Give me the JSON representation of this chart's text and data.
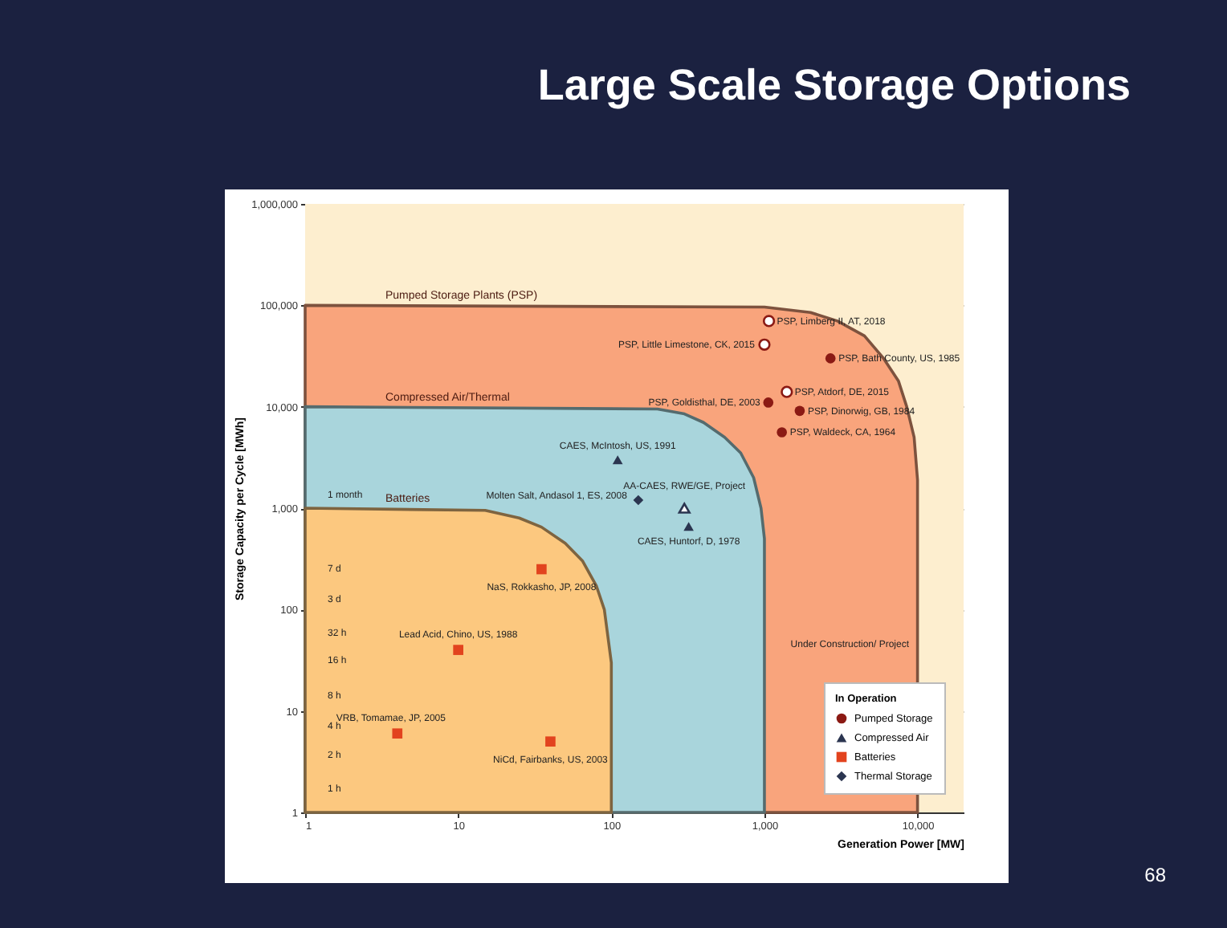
{
  "chart_data": {
    "type": "scatter",
    "title": "Large Scale Storage Options",
    "xlabel": "Generation Power [MW]",
    "ylabel": "Storage Capacity per Cycle [MWh]",
    "legend_title": "In Operation",
    "log": "xy",
    "grid": "y",
    "legend": "bottom right",
    "xlim": [
      1,
      20000
    ],
    "ylim": [
      1,
      1000000
    ],
    "bands": [
      {
        "axis": "y",
        "from": 1,
        "to": 1000000,
        "color": "#fdeecf"
      }
    ],
    "xticks": [
      1,
      10,
      100,
      {
        "value": 1000,
        "label": "1,000"
      },
      {
        "value": 10000,
        "label": "10,000"
      }
    ],
    "yticks": [
      1,
      10,
      100,
      {
        "value": 1000,
        "label": "1,000"
      },
      {
        "value": 10000,
        "label": "10,000"
      },
      {
        "value": 100000,
        "label": "100,000"
      },
      {
        "value": 1000000,
        "label": "1,000,000"
      }
    ],
    "series": [
      {
        "type": "area",
        "name": "Pumped Storage Plants (PSP)",
        "color": "#f9a47c",
        "x": [
          1,
          1000,
          2000,
          3000,
          4500,
          6000,
          7500,
          8500,
          9500,
          10000,
          10000
        ],
        "values": [
          100000,
          96000,
          85000,
          70000,
          50000,
          30000,
          18000,
          10000,
          5000,
          1900,
          1
        ]
      },
      {
        "type": "area",
        "name": "Compressed Air/Thermal",
        "color": "#a9d5dc",
        "x": [
          1,
          200,
          300,
          400,
          550,
          700,
          850,
          950,
          1000,
          1000
        ],
        "values": [
          10000,
          9500,
          8500,
          7000,
          5000,
          3500,
          2000,
          1000,
          500,
          1
        ]
      },
      {
        "type": "area",
        "name": "Batteries",
        "color": "#fcc87f",
        "x": [
          1,
          15,
          25,
          35,
          50,
          65,
          80,
          90,
          100,
          100
        ],
        "values": [
          1000,
          950,
          800,
          650,
          450,
          300,
          170,
          100,
          30,
          1
        ]
      },
      {
        "name": "Pumped Storage",
        "marker": "circle",
        "color": "#8b1a14",
        "x": [
          2700,
          1060,
          1700,
          1300
        ],
        "values": [
          30000,
          11000,
          9100,
          5600
        ]
      },
      {
        "marker": "circle",
        "color": "#ffffff",
        "x": [
          1070,
          1000,
          1400
        ],
        "values": [
          70000,
          41000,
          14000
        ]
      },
      {
        "name": "Compressed Air",
        "marker": "triangle",
        "color": "#2b3550",
        "x": [
          110,
          320
        ],
        "values": [
          3000,
          660
        ]
      },
      {
        "marker": "triangle",
        "color": "#ffffff",
        "x": [
          300
        ],
        "values": [
          1000
        ]
      },
      {
        "name": "Batteries",
        "marker": "square",
        "color": "#e2431e",
        "x": [
          35,
          10,
          4,
          40
        ],
        "values": [
          250,
          40,
          6,
          5
        ]
      },
      {
        "name": "Thermal Storage",
        "marker": "diamond",
        "color": "#2b3550",
        "x": [
          150
        ],
        "values": [
          1200
        ]
      }
    ],
    "annotations": [
      {
        "text": "PSP, Bath County, US, 1985",
        "x": 2700,
        "y": 30000
      },
      {
        "text": "PSP, Goldisthal, DE, 2003",
        "x": 1060,
        "y": 11000
      },
      {
        "text": "PSP, Dinorwig, GB, 1984",
        "x": 1700,
        "y": 9100
      },
      {
        "text": "PSP, Waldeck, CA, 1964",
        "x": 1300,
        "y": 5600
      },
      {
        "text": "PSP, Limberg II, AT, 2018",
        "x": 1070,
        "y": 70000
      },
      {
        "text": "PSP, Little Limestone, CK, 2015",
        "x": 1000,
        "y": 41000
      },
      {
        "text": "PSP, Atdorf, DE, 2015",
        "x": 1400,
        "y": 14000
      },
      {
        "text": "CAES, McIntosh, US, 1991",
        "x": 110,
        "y": 3000
      },
      {
        "text": "CAES, Huntorf, D, 1978",
        "x": 320,
        "y": 660
      },
      {
        "text": "AA-CAES, RWE/GE, Project",
        "x": 300,
        "y": 1000
      },
      {
        "text": "NaS, Rokkasho, JP, 2008",
        "x": 35,
        "y": 250
      },
      {
        "text": "Lead Acid, Chino, US, 1988",
        "x": 10,
        "y": 40
      },
      {
        "text": "VRB, Tomamae, JP, 2005",
        "x": 4,
        "y": 6
      },
      {
        "text": "NiCd, Fairbanks, US, 2003",
        "x": 40,
        "y": 5
      },
      {
        "text": "Molten Salt, Andasol 1, ES, 2008",
        "x": 150,
        "y": 1200
      },
      "1 month",
      "7 d",
      "3 d",
      "32 h",
      "16 h",
      "8 h",
      "4 h",
      "2 h",
      "1 h",
      "Under Construction/ Project",
      "68"
    ]
  }
}
